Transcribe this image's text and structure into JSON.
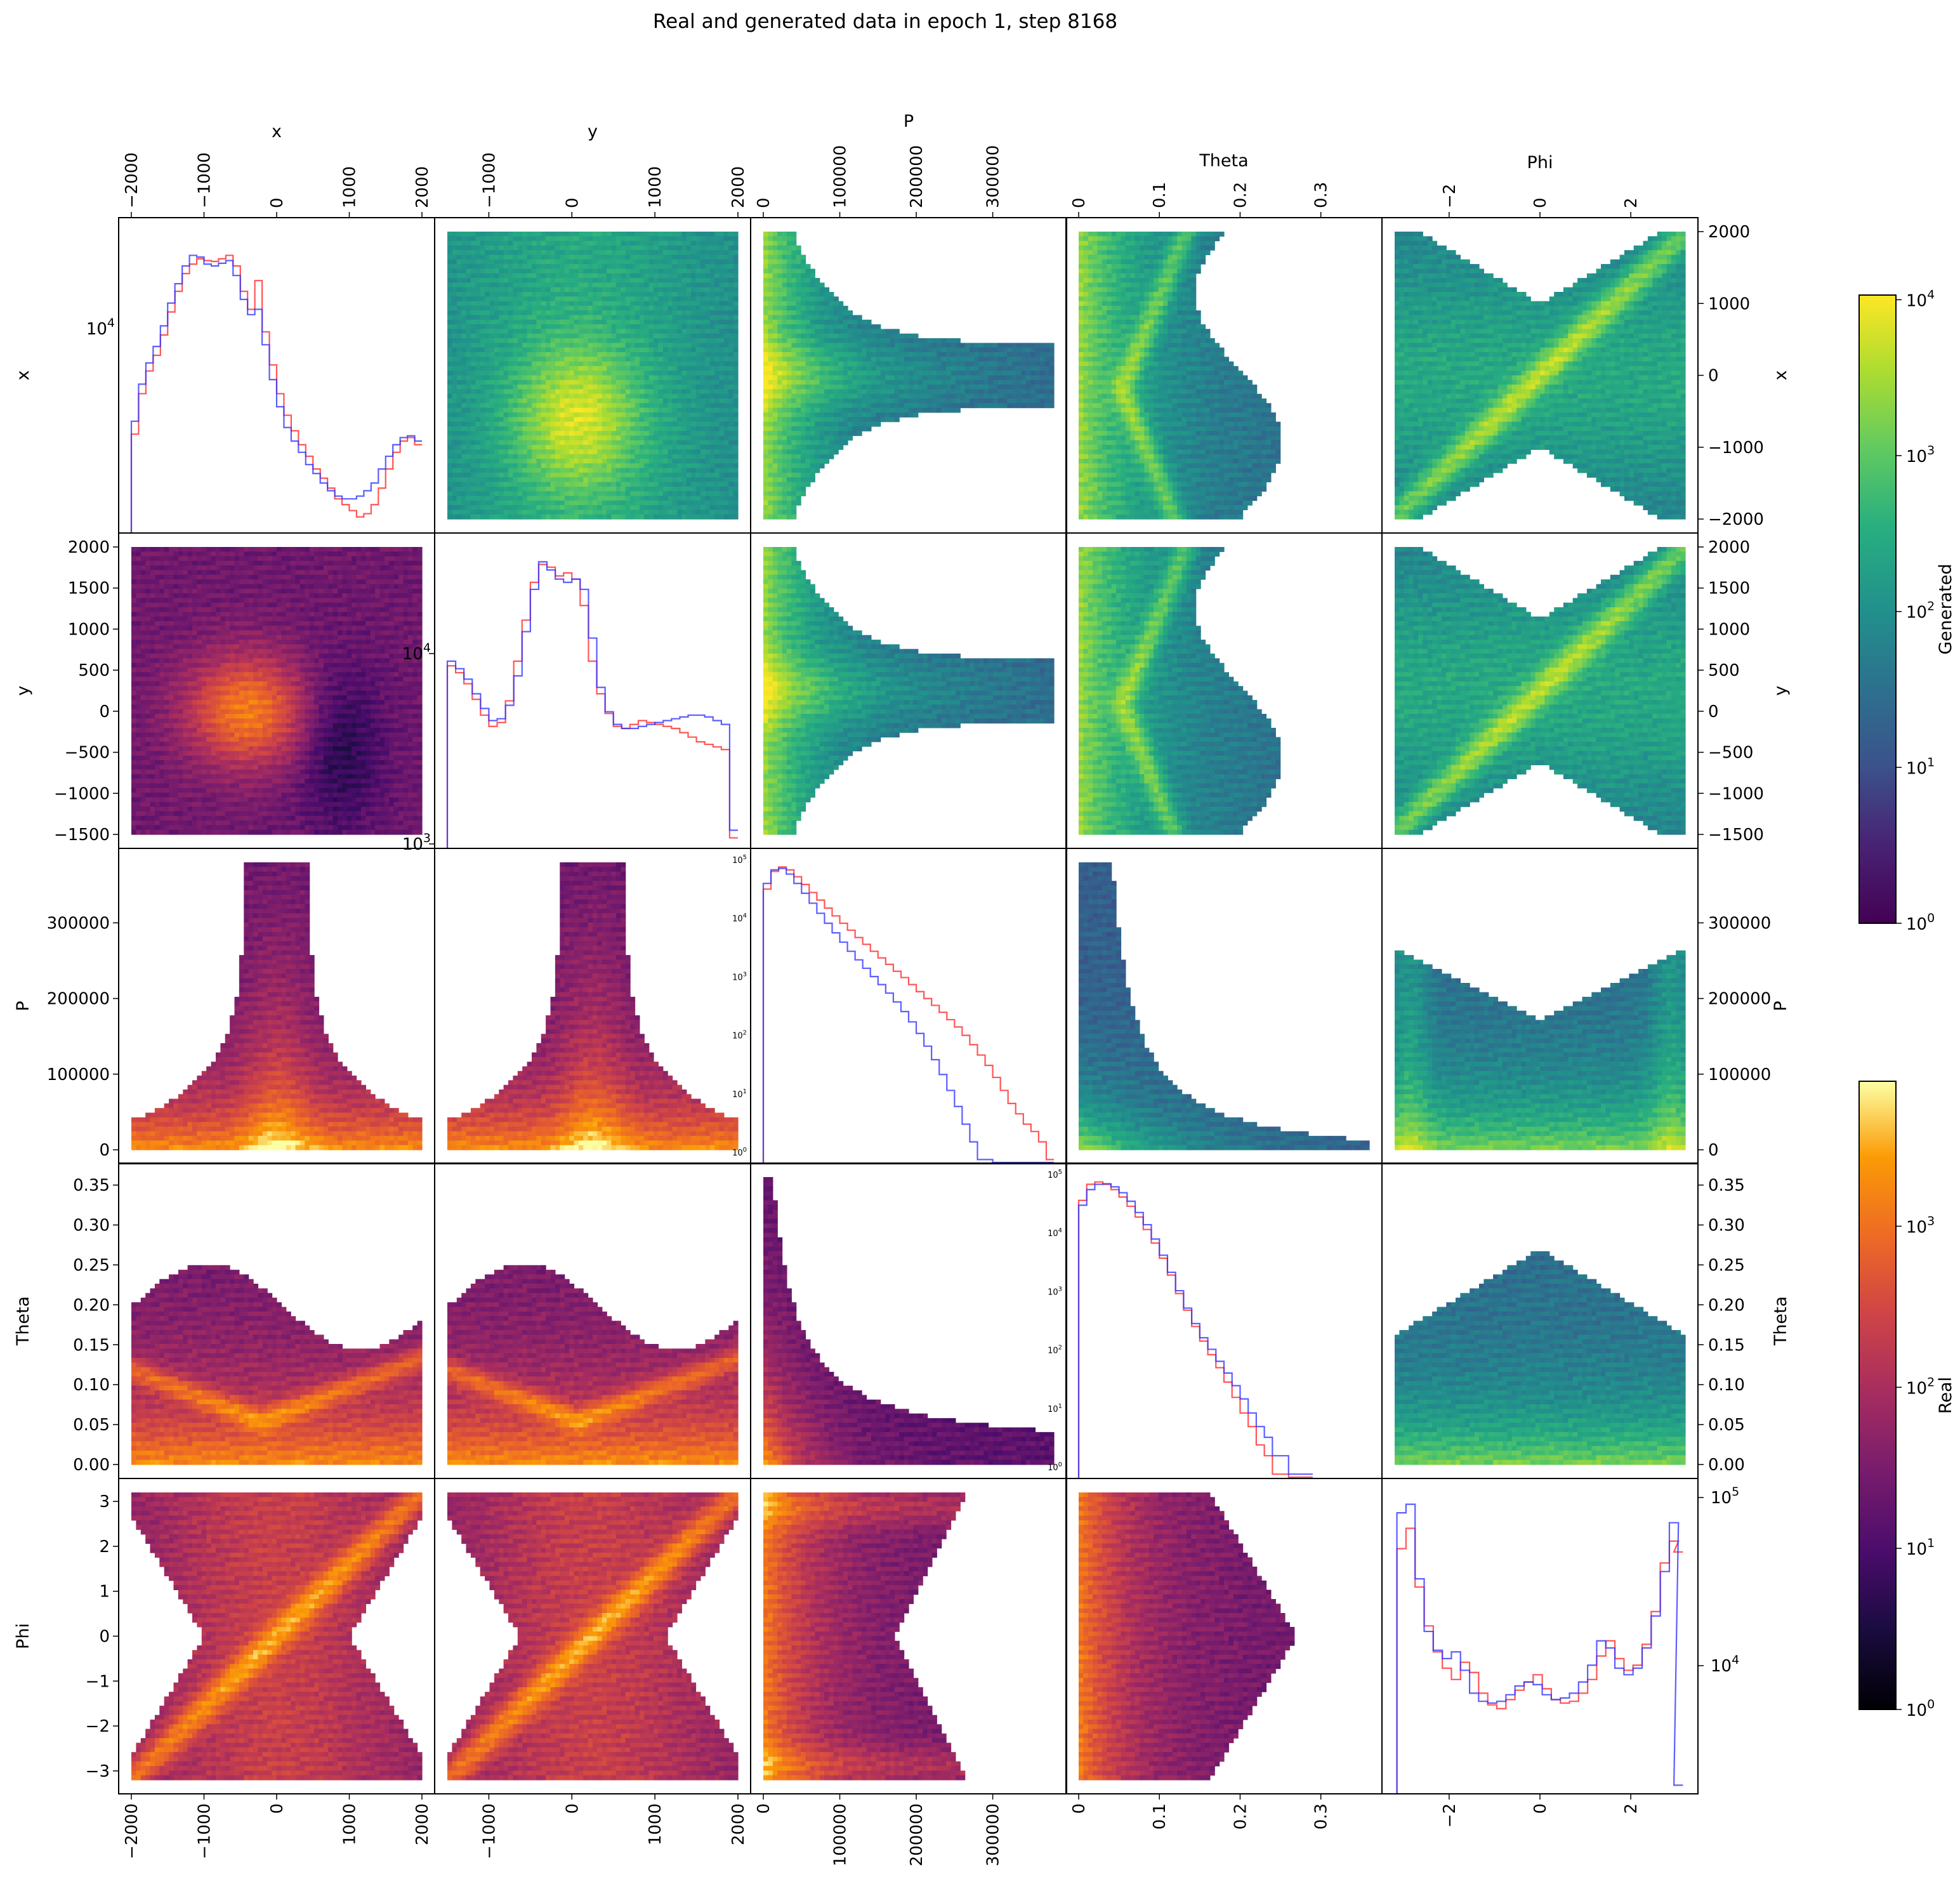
{
  "title": "Real and generated data in epoch 1, step 8168",
  "variables": [
    "x",
    "y",
    "P",
    "Theta",
    "Phi"
  ],
  "colors": {
    "real_line": "#ff2a2a",
    "generated_line": "#3535ff",
    "frame": "#000000"
  },
  "colorbars": [
    {
      "label": "Generated",
      "cmap": "viridis",
      "scale": "log",
      "range": [
        1,
        10000
      ],
      "ticks": [
        "10^0",
        "10^1",
        "10^2",
        "10^3",
        "10^4"
      ]
    },
    {
      "label": "Real",
      "cmap": "inferno",
      "scale": "log",
      "range": [
        1,
        8000
      ],
      "ticks": [
        "10^0",
        "10^1",
        "10^2",
        "10^3"
      ]
    }
  ],
  "chart_data": {
    "type": "heatmap",
    "layout": "pair-plot grid 5x5: diagonal = 1D step histograms (Real red, Generated blue); upper triangle = 2D histograms of generated data (viridis, log); lower triangle = 2D histograms of real data (inferno, log)",
    "axes": {
      "x": {
        "range": [
          -2000,
          2000
        ],
        "ticks": [
          -2000,
          -1000,
          0,
          1000,
          2000
        ]
      },
      "y": {
        "range": [
          -1500,
          2000
        ],
        "ticks": [
          -1500,
          -1000,
          -500,
          0,
          500,
          1000,
          1500,
          2000
        ],
        "top_ticks": [
          -1000,
          0,
          1000,
          2000
        ]
      },
      "P": {
        "range": [
          0,
          380000
        ],
        "ticks": [
          0,
          100000,
          200000,
          300000
        ]
      },
      "Theta": {
        "range": [
          0,
          0.36
        ],
        "ticks": [
          0.0,
          0.05,
          0.1,
          0.15,
          0.2,
          0.25,
          0.3,
          0.35
        ],
        "top_ticks": [
          0.0,
          0.1,
          0.2,
          0.3
        ]
      },
      "Phi": {
        "range": [
          -3.2,
          3.2
        ],
        "ticks": [
          -3,
          -2,
          -1,
          0,
          1,
          2,
          3
        ],
        "top_ticks": [
          -2,
          0,
          2
        ]
      }
    },
    "diagonal_histograms": {
      "x": {
        "yscale": "log",
        "tick_labels": [
          "10^4"
        ],
        "bins": [
          -1950,
          -1850,
          -1750,
          -1650,
          -1550,
          -1450,
          -1350,
          -1250,
          -1150,
          -1050,
          -950,
          -850,
          -750,
          -650,
          -550,
          -450,
          -350,
          -250,
          -150,
          -50,
          50,
          150,
          250,
          350,
          450,
          550,
          650,
          750,
          850,
          950,
          1050,
          1150,
          1250,
          1350,
          1450,
          1550,
          1650,
          1750,
          1850,
          1950
        ],
        "series": [
          {
            "name": "Real",
            "values": [
              3800,
              5200,
              6200,
              7000,
              8200,
              9800,
              11500,
              13200,
              14200,
              14800,
              14600,
              14500,
              14800,
              15200,
              14000,
              11500,
              10000,
              12500,
              8400,
              6500,
              5200,
              4400,
              3900,
              3500,
              3200,
              2900,
              2700,
              2500,
              2300,
              2200,
              2100,
              2000,
              2050,
              2200,
              2500,
              2900,
              3300,
              3600,
              3700,
              3500
            ]
          },
          {
            "name": "Generated",
            "values": [
              4200,
              5600,
              6600,
              7500,
              8800,
              10500,
              12200,
              14000,
              15200,
              15000,
              14200,
              14000,
              14300,
              14600,
              13000,
              10800,
              9600,
              10000,
              7600,
              5800,
              4700,
              4000,
              3600,
              3300,
              3000,
              2800,
              2600,
              2450,
              2350,
              2300,
              2300,
              2350,
              2450,
              2600,
              2900,
              3200,
              3500,
              3700,
              3750,
              3600
            ]
          }
        ]
      },
      "y": {
        "yscale": "log",
        "tick_labels": [
          "10^4",
          "10^3"
        ],
        "bins": [
          -1450,
          -1350,
          -1250,
          -1150,
          -1050,
          -950,
          -850,
          -750,
          -650,
          -550,
          -450,
          -350,
          -250,
          -150,
          -50,
          50,
          150,
          250,
          350,
          450,
          550,
          650,
          750,
          850,
          950,
          1050,
          1150,
          1250,
          1350,
          1450,
          1550,
          1650,
          1750,
          1850,
          1950
        ],
        "series": [
          {
            "name": "Real",
            "values": [
              8500,
              7800,
              6800,
              5600,
              4600,
              4000,
              4200,
              5500,
              9000,
              15000,
              24000,
              30000,
              29000,
              26000,
              27000,
              25000,
              18000,
              9000,
              6000,
              4700,
              4000,
              3900,
              4100,
              4300,
              4200,
              4100,
              4000,
              3900,
              3700,
              3500,
              3300,
              3200,
              3100,
              3000,
              1000
            ]
          },
          {
            "name": "Generated",
            "values": [
              9000,
              8200,
              7200,
              6000,
              5000,
              4300,
              4400,
              5200,
              7500,
              13000,
              22000,
              31000,
              28000,
              25000,
              24000,
              25000,
              22000,
              12000,
              6500,
              4800,
              4100,
              3900,
              3900,
              4000,
              4100,
              4200,
              4300,
              4400,
              4500,
              4600,
              4600,
              4500,
              4300,
              4100,
              1100
            ]
          }
        ]
      },
      "P": {
        "yscale": "log",
        "tick_labels": [
          "10^5",
          "10^4",
          "10^3",
          "10^2",
          "10^1",
          "10^0"
        ],
        "bins": [
          5000,
          15000,
          25000,
          35000,
          45000,
          55000,
          65000,
          75000,
          85000,
          95000,
          105000,
          115000,
          125000,
          135000,
          145000,
          155000,
          165000,
          175000,
          185000,
          195000,
          205000,
          215000,
          225000,
          235000,
          245000,
          255000,
          265000,
          275000,
          285000,
          295000,
          305000,
          315000,
          325000,
          335000,
          345000,
          355000,
          365000,
          375000
        ],
        "series": [
          {
            "name": "Real",
            "values": [
              40000,
              80000,
              95000,
              85000,
              65000,
              48000,
              35000,
              26000,
              19000,
              14000,
              10500,
              8000,
              6000,
              4600,
              3500,
              2700,
              2100,
              1600,
              1250,
              950,
              720,
              550,
              420,
              320,
              240,
              180,
              130,
              90,
              60,
              40,
              25,
              15,
              9,
              6,
              4,
              3,
              2,
              1
            ]
          },
          {
            "name": "Generated",
            "values": [
              50000,
              85000,
              90000,
              72000,
              50000,
              34000,
              23000,
              15500,
              10500,
              7200,
              5000,
              3500,
              2500,
              1800,
              1300,
              950,
              680,
              480,
              330,
              220,
              140,
              85,
              50,
              28,
              15,
              8,
              4,
              2,
              1,
              1,
              0,
              0,
              0,
              0,
              0,
              0,
              0,
              0
            ]
          }
        ]
      },
      "Theta": {
        "yscale": "log",
        "tick_labels": [
          "10^5",
          "10^4",
          "10^3",
          "10^2",
          "10^1",
          "10^0"
        ],
        "bins": [
          0.005,
          0.015,
          0.025,
          0.035,
          0.045,
          0.055,
          0.065,
          0.075,
          0.085,
          0.095,
          0.105,
          0.115,
          0.125,
          0.135,
          0.145,
          0.155,
          0.165,
          0.175,
          0.185,
          0.195,
          0.205,
          0.215,
          0.225,
          0.235,
          0.245,
          0.255,
          0.265,
          0.275,
          0.285
        ],
        "series": [
          {
            "name": "Real",
            "values": [
              30000,
              55000,
              60000,
              55000,
              45000,
              34000,
              24000,
              16000,
              10000,
              6000,
              3400,
              1800,
              900,
              480,
              260,
              150,
              90,
              55,
              32,
              18,
              10,
              6,
              3,
              2,
              1,
              1,
              0,
              0,
              0
            ]
          },
          {
            "name": "Generated",
            "values": [
              25000,
              45000,
              55000,
              56000,
              50000,
              40000,
              29000,
              19000,
              12000,
              7000,
              3800,
              2000,
              1000,
              520,
              290,
              170,
              110,
              70,
              45,
              28,
              17,
              10,
              6,
              4,
              2,
              2,
              1,
              1,
              1
            ]
          }
        ]
      },
      "Phi": {
        "yscale": "log",
        "tick_labels": [
          "10^5",
          "10^4"
        ],
        "bins": [
          -3.05,
          -2.85,
          -2.65,
          -2.45,
          -2.25,
          -2.05,
          -1.85,
          -1.65,
          -1.45,
          -1.25,
          -1.05,
          -0.85,
          -0.65,
          -0.45,
          -0.25,
          -0.05,
          0.15,
          0.35,
          0.55,
          0.75,
          0.95,
          1.15,
          1.35,
          1.55,
          1.75,
          1.95,
          2.15,
          2.35,
          2.55,
          2.75,
          2.95,
          3.05
        ],
        "series": [
          {
            "name": "Real",
            "values": [
              40000,
              55000,
              22000,
              12000,
              8000,
              6200,
              5200,
              6800,
              5800,
              4200,
              3500,
              3300,
              3800,
              4400,
              5000,
              5600,
              4500,
              3800,
              3600,
              3700,
              4200,
              5200,
              7500,
              9500,
              7200,
              6000,
              6500,
              9000,
              15000,
              32000,
              45000,
              38000
            ]
          },
          {
            "name": "Generated",
            "values": [
              70000,
              80000,
              25000,
              11000,
              8200,
              7200,
              8000,
              6000,
              4200,
              3700,
              3600,
              3700,
              4100,
              4700,
              5000,
              4800,
              4100,
              3800,
              3900,
              4200,
              5000,
              6500,
              9500,
              8500,
              6200,
              5600,
              6200,
              8500,
              14000,
              28000,
              60000,
              1000
            ]
          }
        ]
      }
    }
  }
}
